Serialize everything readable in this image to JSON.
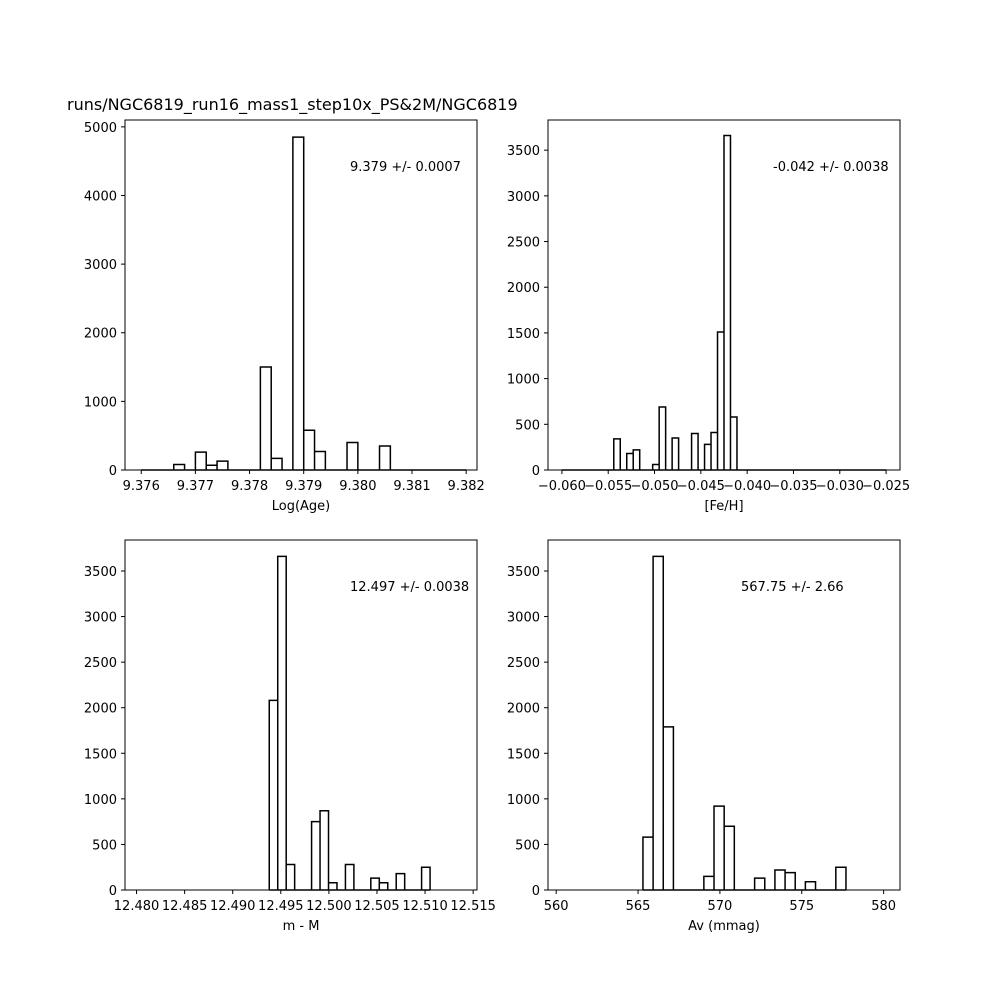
{
  "figure": {
    "title": "runs/NGC6819_run16_mass1_step10x_PS&2M/NGC6819"
  },
  "chart_data": [
    {
      "type": "histogram",
      "xlabel": "Log(Age)",
      "ylabel": "",
      "annotation": "9.379 +/- 0.0007",
      "xlim": [
        9.3757,
        9.3822
      ],
      "ylim": [
        0,
        5100
      ],
      "xticks": [
        9.376,
        9.377,
        9.378,
        9.379,
        9.38,
        9.381,
        9.382
      ],
      "xtick_labels": [
        "9.376",
        "9.377",
        "9.378",
        "9.379",
        "9.380",
        "9.381",
        "9.382"
      ],
      "yticks": [
        0,
        1000,
        2000,
        3000,
        4000,
        5000
      ],
      "ytick_labels": [
        "0",
        "1000",
        "2000",
        "3000",
        "4000",
        "5000"
      ],
      "bin_start": 9.376,
      "bin_width": 0.0002,
      "counts": [
        0,
        0,
        0,
        80,
        0,
        260,
        70,
        130,
        0,
        0,
        0,
        1500,
        170,
        0,
        4850,
        580,
        270,
        0,
        0,
        400,
        0,
        0,
        350,
        0,
        0,
        0,
        0,
        0,
        0,
        0
      ]
    },
    {
      "type": "histogram",
      "xlabel": "[Fe/H]",
      "ylabel": "",
      "annotation": "-0.042 +/- 0.0038",
      "xlim": [
        -0.0615,
        -0.0235
      ],
      "ylim": [
        0,
        3830
      ],
      "xticks": [
        -0.06,
        -0.055,
        -0.05,
        -0.045,
        -0.04,
        -0.035,
        -0.03,
        -0.025
      ],
      "xtick_labels": [
        "−0.060",
        "−0.055",
        "−0.050",
        "−0.045",
        "−0.040",
        "−0.035",
        "−0.030",
        "−0.025"
      ],
      "yticks": [
        0,
        500,
        1000,
        1500,
        2000,
        2500,
        3000,
        3500
      ],
      "ytick_labels": [
        "0",
        "500",
        "1000",
        "1500",
        "2000",
        "2500",
        "3000",
        "3500"
      ],
      "bin_start": -0.06,
      "bin_width": 0.0007,
      "counts": [
        0,
        0,
        0,
        0,
        0,
        0,
        0,
        0,
        340,
        0,
        180,
        220,
        0,
        0,
        60,
        690,
        0,
        350,
        0,
        0,
        400,
        0,
        280,
        410,
        1510,
        3660,
        580,
        0,
        0,
        0,
        0,
        0,
        0,
        0,
        0,
        0,
        0,
        0,
        0,
        0,
        0,
        0,
        0,
        0,
        0,
        0,
        0,
        0,
        0,
        0
      ]
    },
    {
      "type": "histogram",
      "xlabel": "m - M",
      "ylabel": "",
      "annotation": "12.497 +/- 0.0038",
      "xlim": [
        12.4788,
        12.5154
      ],
      "ylim": [
        0,
        3840
      ],
      "xticks": [
        12.48,
        12.485,
        12.49,
        12.495,
        12.5,
        12.505,
        12.51,
        12.515
      ],
      "xtick_labels": [
        "12.480",
        "12.485",
        "12.490",
        "12.495",
        "12.500",
        "12.505",
        "12.510",
        "12.515"
      ],
      "yticks": [
        0,
        500,
        1000,
        1500,
        2000,
        2500,
        3000,
        3500
      ],
      "ytick_labels": [
        "0",
        "500",
        "1000",
        "1500",
        "2000",
        "2500",
        "3000",
        "3500"
      ],
      "bin_start": 12.4938,
      "bin_width": 0.00088,
      "counts": [
        2080,
        3660,
        280,
        0,
        0,
        750,
        870,
        80,
        0,
        280,
        0,
        0,
        130,
        80,
        0,
        180,
        0,
        0,
        250
      ]
    },
    {
      "type": "histogram",
      "xlabel": "Av (mmag)",
      "ylabel": "",
      "annotation": "567.75 +/- 2.66",
      "xlim": [
        559.5,
        581.0
      ],
      "ylim": [
        0,
        3840
      ],
      "xticks": [
        560,
        565,
        570,
        575,
        580
      ],
      "xtick_labels": [
        "560",
        "565",
        "570",
        "575",
        "580"
      ],
      "yticks": [
        0,
        500,
        1000,
        1500,
        2000,
        2500,
        3000,
        3500
      ],
      "ytick_labels": [
        "0",
        "500",
        "1000",
        "1500",
        "2000",
        "2500",
        "3000",
        "3500"
      ],
      "bin_start": 565.3,
      "bin_width": 0.62,
      "counts": [
        580,
        3660,
        1790,
        0,
        0,
        0,
        150,
        920,
        700,
        0,
        0,
        130,
        0,
        220,
        190,
        0,
        90,
        0,
        0,
        250
      ]
    }
  ]
}
